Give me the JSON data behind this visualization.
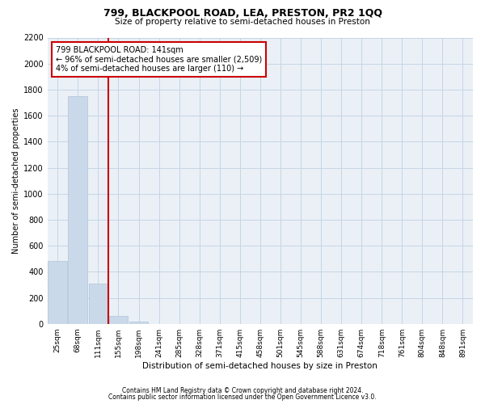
{
  "title_line1": "799, BLACKPOOL ROAD, LEA, PRESTON, PR2 1QQ",
  "title_line2": "Size of property relative to semi-detached houses in Preston",
  "xlabel": "Distribution of semi-detached houses by size in Preston",
  "ylabel": "Number of semi-detached properties",
  "footer_line1": "Contains HM Land Registry data © Crown copyright and database right 2024.",
  "footer_line2": "Contains public sector information licensed under the Open Government Licence v3.0.",
  "annotation_line1": "799 BLACKPOOL ROAD: 141sqm",
  "annotation_line2": "← 96% of semi-detached houses are smaller (2,509)",
  "annotation_line3": "4% of semi-detached houses are larger (110) →",
  "property_size": 141,
  "vline_x_index": 2,
  "bar_color": "#c9d9ea",
  "bar_edgecolor": "#aec4da",
  "vline_color": "#cc0000",
  "annotation_box_edgecolor": "#cc0000",
  "grid_color": "#c5d5e5",
  "background_color": "#eaf0f6",
  "ylim": [
    0,
    2200
  ],
  "yticks": [
    0,
    200,
    400,
    600,
    800,
    1000,
    1200,
    1400,
    1600,
    1800,
    2000,
    2200
  ],
  "bin_labels": [
    "25sqm",
    "68sqm",
    "111sqm",
    "155sqm",
    "198sqm",
    "241sqm",
    "285sqm",
    "328sqm",
    "371sqm",
    "415sqm",
    "458sqm",
    "501sqm",
    "545sqm",
    "588sqm",
    "631sqm",
    "674sqm",
    "718sqm",
    "761sqm",
    "804sqm",
    "848sqm",
    "891sqm"
  ],
  "bar_heights": [
    480,
    1750,
    310,
    60,
    18,
    0,
    0,
    0,
    0,
    0,
    0,
    0,
    0,
    0,
    0,
    0,
    0,
    0,
    0,
    0,
    0
  ]
}
